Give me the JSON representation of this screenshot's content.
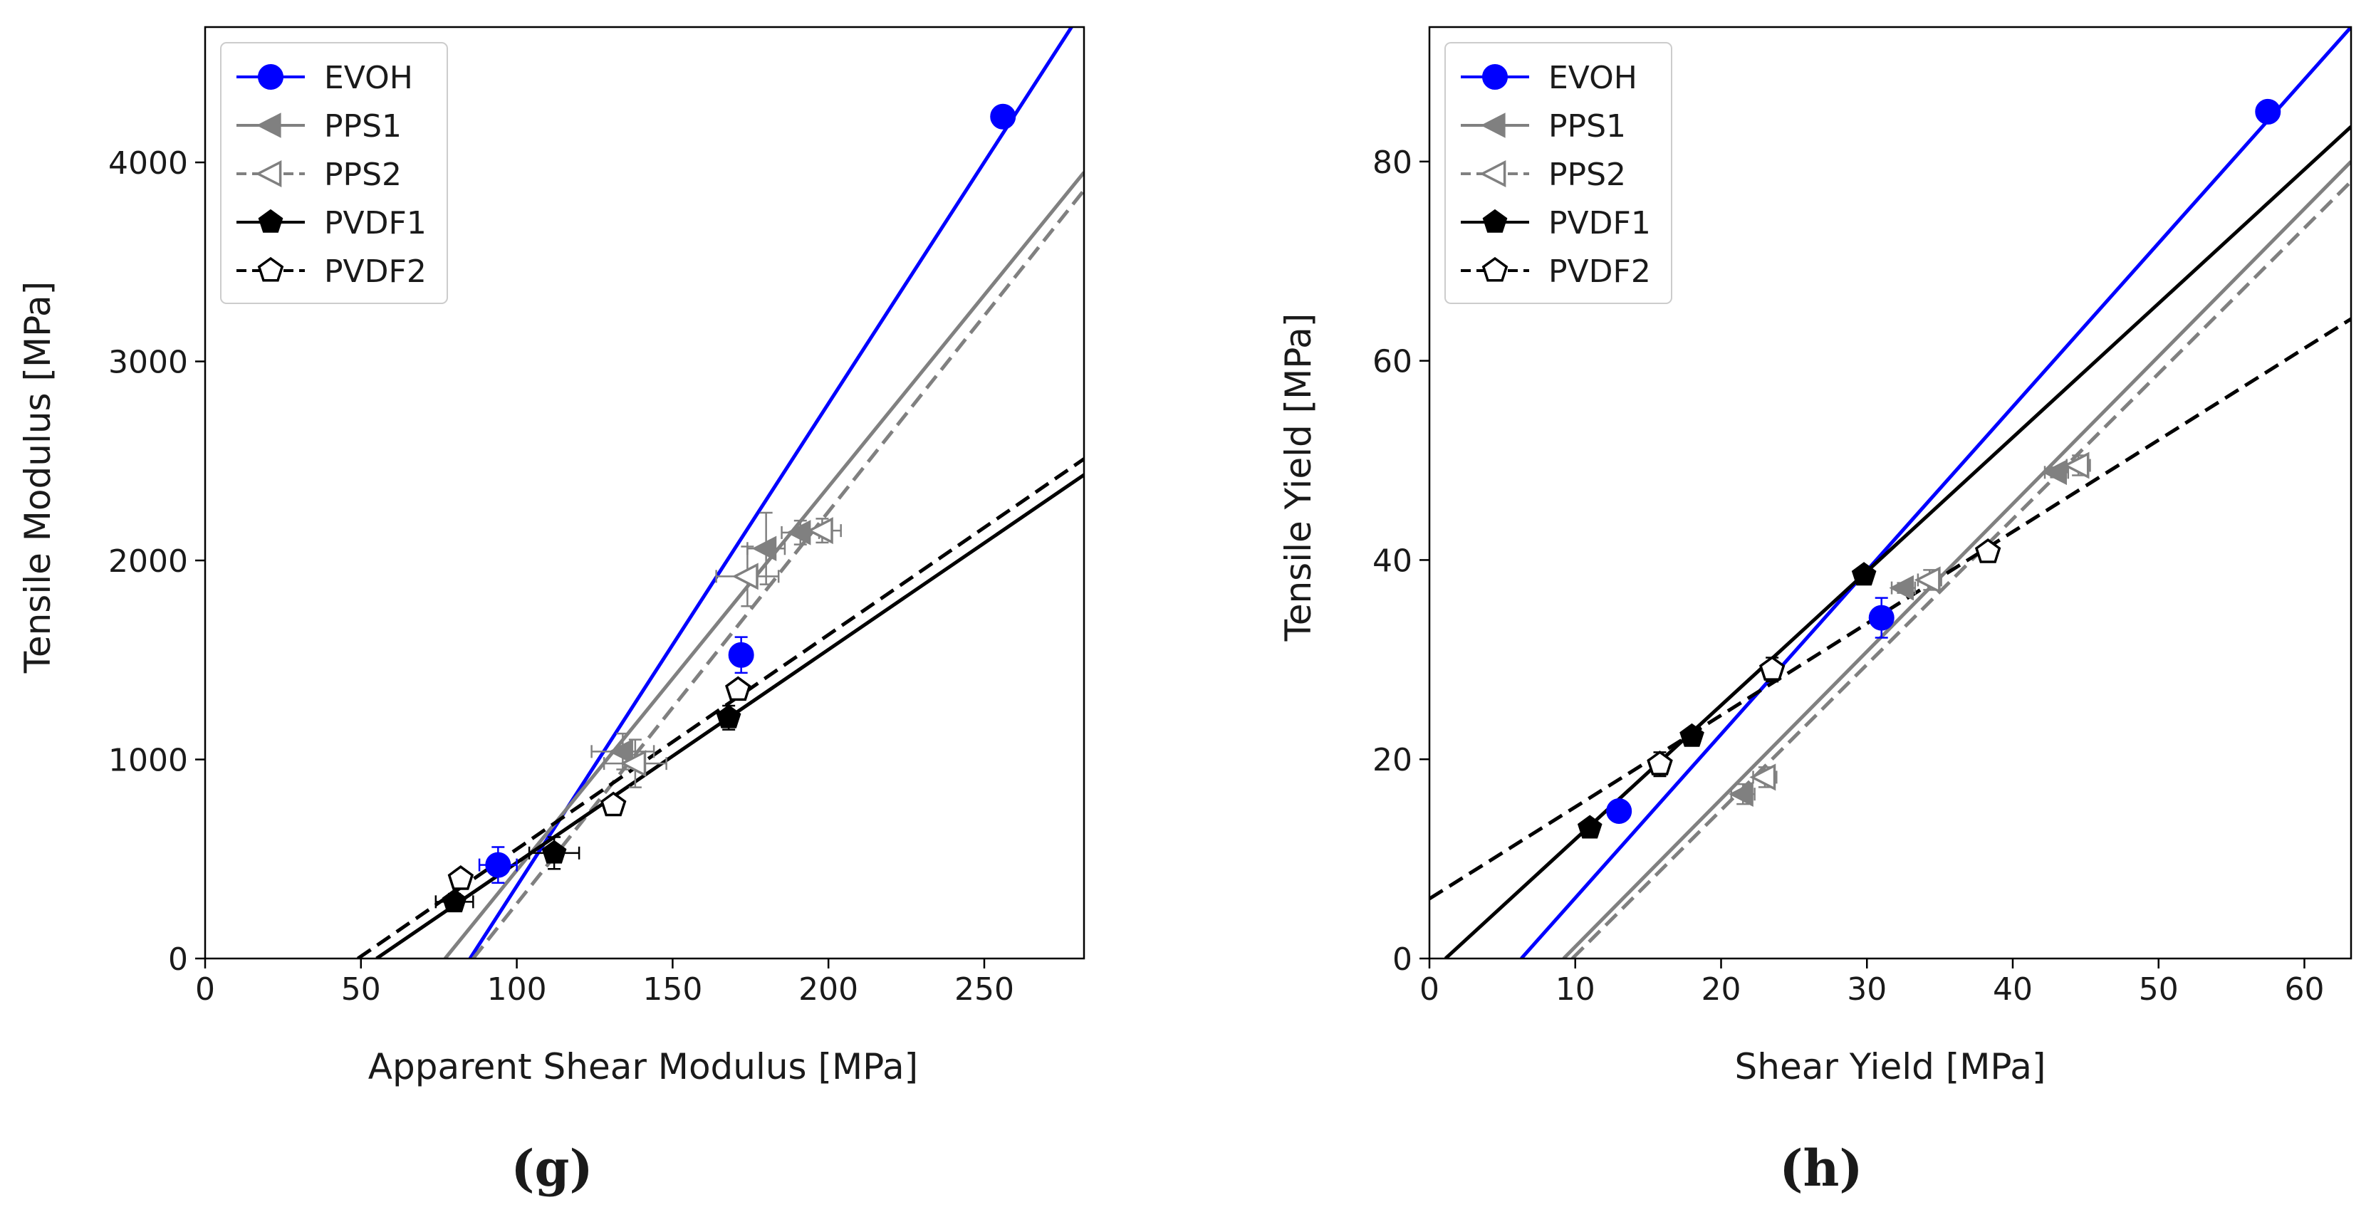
{
  "chart_data": [
    {
      "type": "scatter",
      "caption": "(g)",
      "xlabel": "Apparent Shear Modulus [MPa]",
      "ylabel": "Tensile Modulus [MPa]",
      "xlim": [
        0,
        282
      ],
      "ylim": [
        0,
        4680
      ],
      "xticks": [
        0,
        50,
        100,
        150,
        200,
        250
      ],
      "yticks": [
        0,
        1000,
        2000,
        3000,
        4000
      ],
      "legend_position": "upper-left",
      "series": [
        {
          "name": "EVOH",
          "color": "#0000ff",
          "marker": "circle",
          "filled": true,
          "line_style": "solid",
          "points": [
            [
              94,
              470
            ],
            [
              172,
              1525
            ],
            [
              256,
              4230
            ]
          ],
          "xerr": [
            6,
            0,
            0
          ],
          "yerr": [
            90,
            90,
            0
          ],
          "fit": [
            [
              85,
              0
            ],
            [
              278,
              4680
            ]
          ]
        },
        {
          "name": "PPS1",
          "color": "#808080",
          "marker": "triangle-left",
          "filled": true,
          "line_style": "solid",
          "points": [
            [
              134,
              1040
            ],
            [
              180,
              2060
            ],
            [
              191,
              2140
            ]
          ],
          "xerr": [
            10,
            6,
            6
          ],
          "yerr": [
            90,
            180,
            60
          ],
          "fit": [
            [
              77,
              0
            ],
            [
              282,
              3950
            ]
          ]
        },
        {
          "name": "PPS2",
          "color": "#808080",
          "marker": "triangle-left",
          "filled": false,
          "line_style": "dashed",
          "points": [
            [
              138,
              980
            ],
            [
              174,
              1920
            ],
            [
              198,
              2150
            ]
          ],
          "xerr": [
            10,
            10,
            6
          ],
          "yerr": [
            120,
            150,
            60
          ],
          "fit": [
            [
              86,
              0
            ],
            [
              282,
              3860
            ]
          ]
        },
        {
          "name": "PVDF1",
          "color": "#000000",
          "marker": "pentagon",
          "filled": true,
          "line_style": "solid",
          "points": [
            [
              80,
              285
            ],
            [
              112,
              530
            ],
            [
              168,
              1210
            ]
          ],
          "xerr": [
            6,
            8,
            0
          ],
          "yerr": [
            40,
            80,
            60
          ],
          "fit": [
            [
              55,
              0
            ],
            [
              282,
              2430
            ]
          ]
        },
        {
          "name": "PVDF2",
          "color": "#000000",
          "marker": "pentagon",
          "filled": false,
          "line_style": "dashed",
          "points": [
            [
              82,
              400
            ],
            [
              131,
              770
            ],
            [
              171,
              1350
            ]
          ],
          "xerr": [
            0,
            0,
            0
          ],
          "yerr": [
            40,
            40,
            40
          ],
          "fit": [
            [
              49,
              0
            ],
            [
              282,
              2510
            ]
          ]
        }
      ]
    },
    {
      "type": "scatter",
      "caption": "(h)",
      "xlabel": "Shear Yield [MPa]",
      "ylabel": "Tensile Yield [MPa]",
      "xlim": [
        0,
        63.2
      ],
      "ylim": [
        0,
        93.5
      ],
      "xticks": [
        0,
        10,
        20,
        30,
        40,
        50,
        60
      ],
      "yticks": [
        0,
        20,
        40,
        60,
        80
      ],
      "legend_position": "upper-left",
      "series": [
        {
          "name": "EVOH",
          "color": "#0000ff",
          "marker": "circle",
          "filled": true,
          "line_style": "solid",
          "points": [
            [
              13,
              14.8
            ],
            [
              31,
              34.2
            ],
            [
              57.5,
              85
            ]
          ],
          "xerr": [
            0,
            0,
            0
          ],
          "yerr": [
            0,
            2,
            0
          ],
          "fit": [
            [
              6.3,
              0
            ],
            [
              63.2,
              93.5
            ]
          ]
        },
        {
          "name": "PPS1",
          "color": "#808080",
          "marker": "triangle-left",
          "filled": true,
          "line_style": "solid",
          "points": [
            [
              21.5,
              16.5
            ],
            [
              32.5,
              37.2
            ],
            [
              43,
              48.8
            ]
          ],
          "xerr": [
            0.8,
            0.8,
            0.8
          ],
          "yerr": [
            1,
            0.5,
            0.5
          ],
          "fit": [
            [
              9.2,
              0
            ],
            [
              63.2,
              80
            ]
          ]
        },
        {
          "name": "PPS2",
          "color": "#808080",
          "marker": "triangle-left",
          "filled": false,
          "line_style": "dashed",
          "points": [
            [
              23,
              18.2
            ],
            [
              34.3,
              38
            ],
            [
              44.5,
              49.5
            ]
          ],
          "xerr": [
            0.8,
            0.8,
            0.8
          ],
          "yerr": [
            1,
            1,
            1
          ],
          "fit": [
            [
              9.8,
              0
            ],
            [
              63.2,
              78
            ]
          ]
        },
        {
          "name": "PVDF1",
          "color": "#000000",
          "marker": "pentagon",
          "filled": true,
          "line_style": "solid",
          "points": [
            [
              11,
              13.1
            ],
            [
              18,
              22.3
            ],
            [
              29.8,
              38.5
            ]
          ],
          "xerr": [
            0,
            0,
            0
          ],
          "yerr": [
            0.5,
            0.5,
            0.5
          ],
          "fit": [
            [
              1.1,
              0
            ],
            [
              63.2,
              83.5
            ]
          ]
        },
        {
          "name": "PVDF2",
          "color": "#000000",
          "marker": "pentagon",
          "filled": false,
          "line_style": "dashed",
          "points": [
            [
              15.8,
              19.5
            ],
            [
              23.5,
              29
            ],
            [
              38.3,
              40.8
            ]
          ],
          "xerr": [
            0,
            0,
            0
          ],
          "yerr": [
            1.2,
            1.2,
            0.8
          ],
          "fit": [
            [
              0,
              6
            ],
            [
              63.2,
              64.2
            ]
          ]
        }
      ]
    }
  ]
}
